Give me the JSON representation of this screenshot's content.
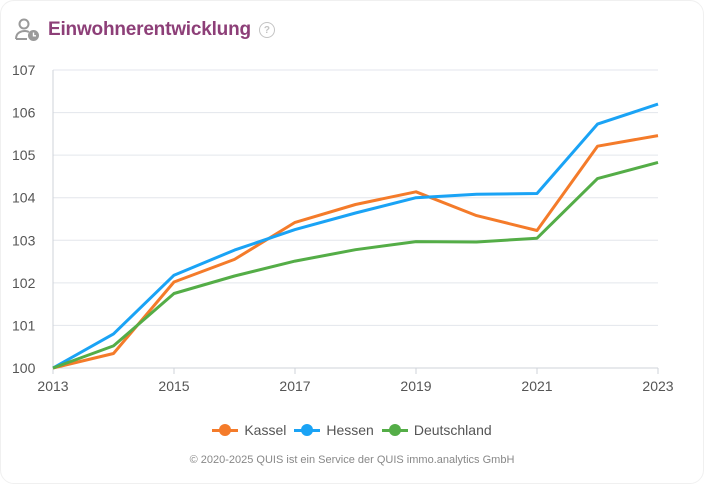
{
  "header": {
    "icon": "person-clock-icon",
    "title": "Einwohnerentwicklung",
    "help_icon": "question-circle-icon",
    "help_glyph": "?"
  },
  "chart_data": {
    "type": "line",
    "title": "Einwohnerentwicklung",
    "xlabel": "",
    "ylabel": "",
    "x": [
      2013,
      2014,
      2015,
      2016,
      2017,
      2018,
      2019,
      2020,
      2021,
      2022,
      2023
    ],
    "x_tick_labels": [
      "2013",
      "2015",
      "2017",
      "2019",
      "2021",
      "2023"
    ],
    "y_tick_labels": [
      "100",
      "101",
      "102",
      "103",
      "104",
      "105",
      "106",
      "107"
    ],
    "ylim": [
      100,
      107
    ],
    "xlim": [
      2013,
      2023
    ],
    "grid": true,
    "legend_position": "bottom-center",
    "series": [
      {
        "name": "Kassel",
        "color": "#f47b2a",
        "values": [
          100.0,
          100.34,
          102.02,
          102.55,
          103.42,
          103.84,
          104.14,
          103.58,
          103.23,
          105.21,
          105.46
        ]
      },
      {
        "name": "Hessen",
        "color": "#1aa3f5",
        "values": [
          100.0,
          100.8,
          102.18,
          102.77,
          103.25,
          103.64,
          104.0,
          104.08,
          104.1,
          105.73,
          106.2
        ]
      },
      {
        "name": "Deutschland",
        "color": "#54ad47",
        "values": [
          100.0,
          100.52,
          101.75,
          102.16,
          102.51,
          102.78,
          102.97,
          102.96,
          103.05,
          104.45,
          104.83
        ]
      }
    ]
  },
  "footer": {
    "copyright": "© 2020-2025 QUIS ist ein Service der QUIS immo.analytics GmbH"
  }
}
